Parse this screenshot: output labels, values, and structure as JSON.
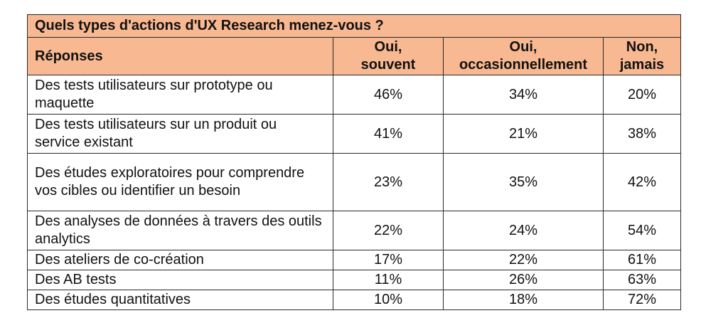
{
  "title": "Quels types d'actions d'UX Research menez-vous ?",
  "headers": {
    "answers": "Réponses",
    "often_line1": "Oui,",
    "often_line2": "souvent",
    "occasionally_line1": "Oui,",
    "occasionally_line2": "occasionnellement",
    "never_line1": "Non,",
    "never_line2": "jamais"
  },
  "colors": {
    "header_fill": "#f8b891",
    "border": "#2a2a2a",
    "background": "#ffffff"
  },
  "rows": [
    {
      "label": "Des tests utilisateurs sur prototype ou maquette",
      "often": "46%",
      "occasionally": "34%",
      "never": "20%"
    },
    {
      "label": "Des tests utilisateurs sur un produit ou service existant",
      "often": "41%",
      "occasionally": "21%",
      "never": "38%"
    },
    {
      "label": "Des études exploratoires pour comprendre vos cibles ou identifier un besoin",
      "often": "23%",
      "occasionally": "35%",
      "never": "42%"
    },
    {
      "label": "Des analyses de données à travers des outils analytics",
      "often": "22%",
      "occasionally": "24%",
      "never": "54%"
    },
    {
      "label": "Des ateliers de co-création",
      "often": "17%",
      "occasionally": "22%",
      "never": "61%"
    },
    {
      "label": "Des AB tests",
      "often": "11%",
      "occasionally": "26%",
      "never": "63%"
    },
    {
      "label": "Des études quantitatives",
      "often": "10%",
      "occasionally": "18%",
      "never": "72%"
    }
  ]
}
